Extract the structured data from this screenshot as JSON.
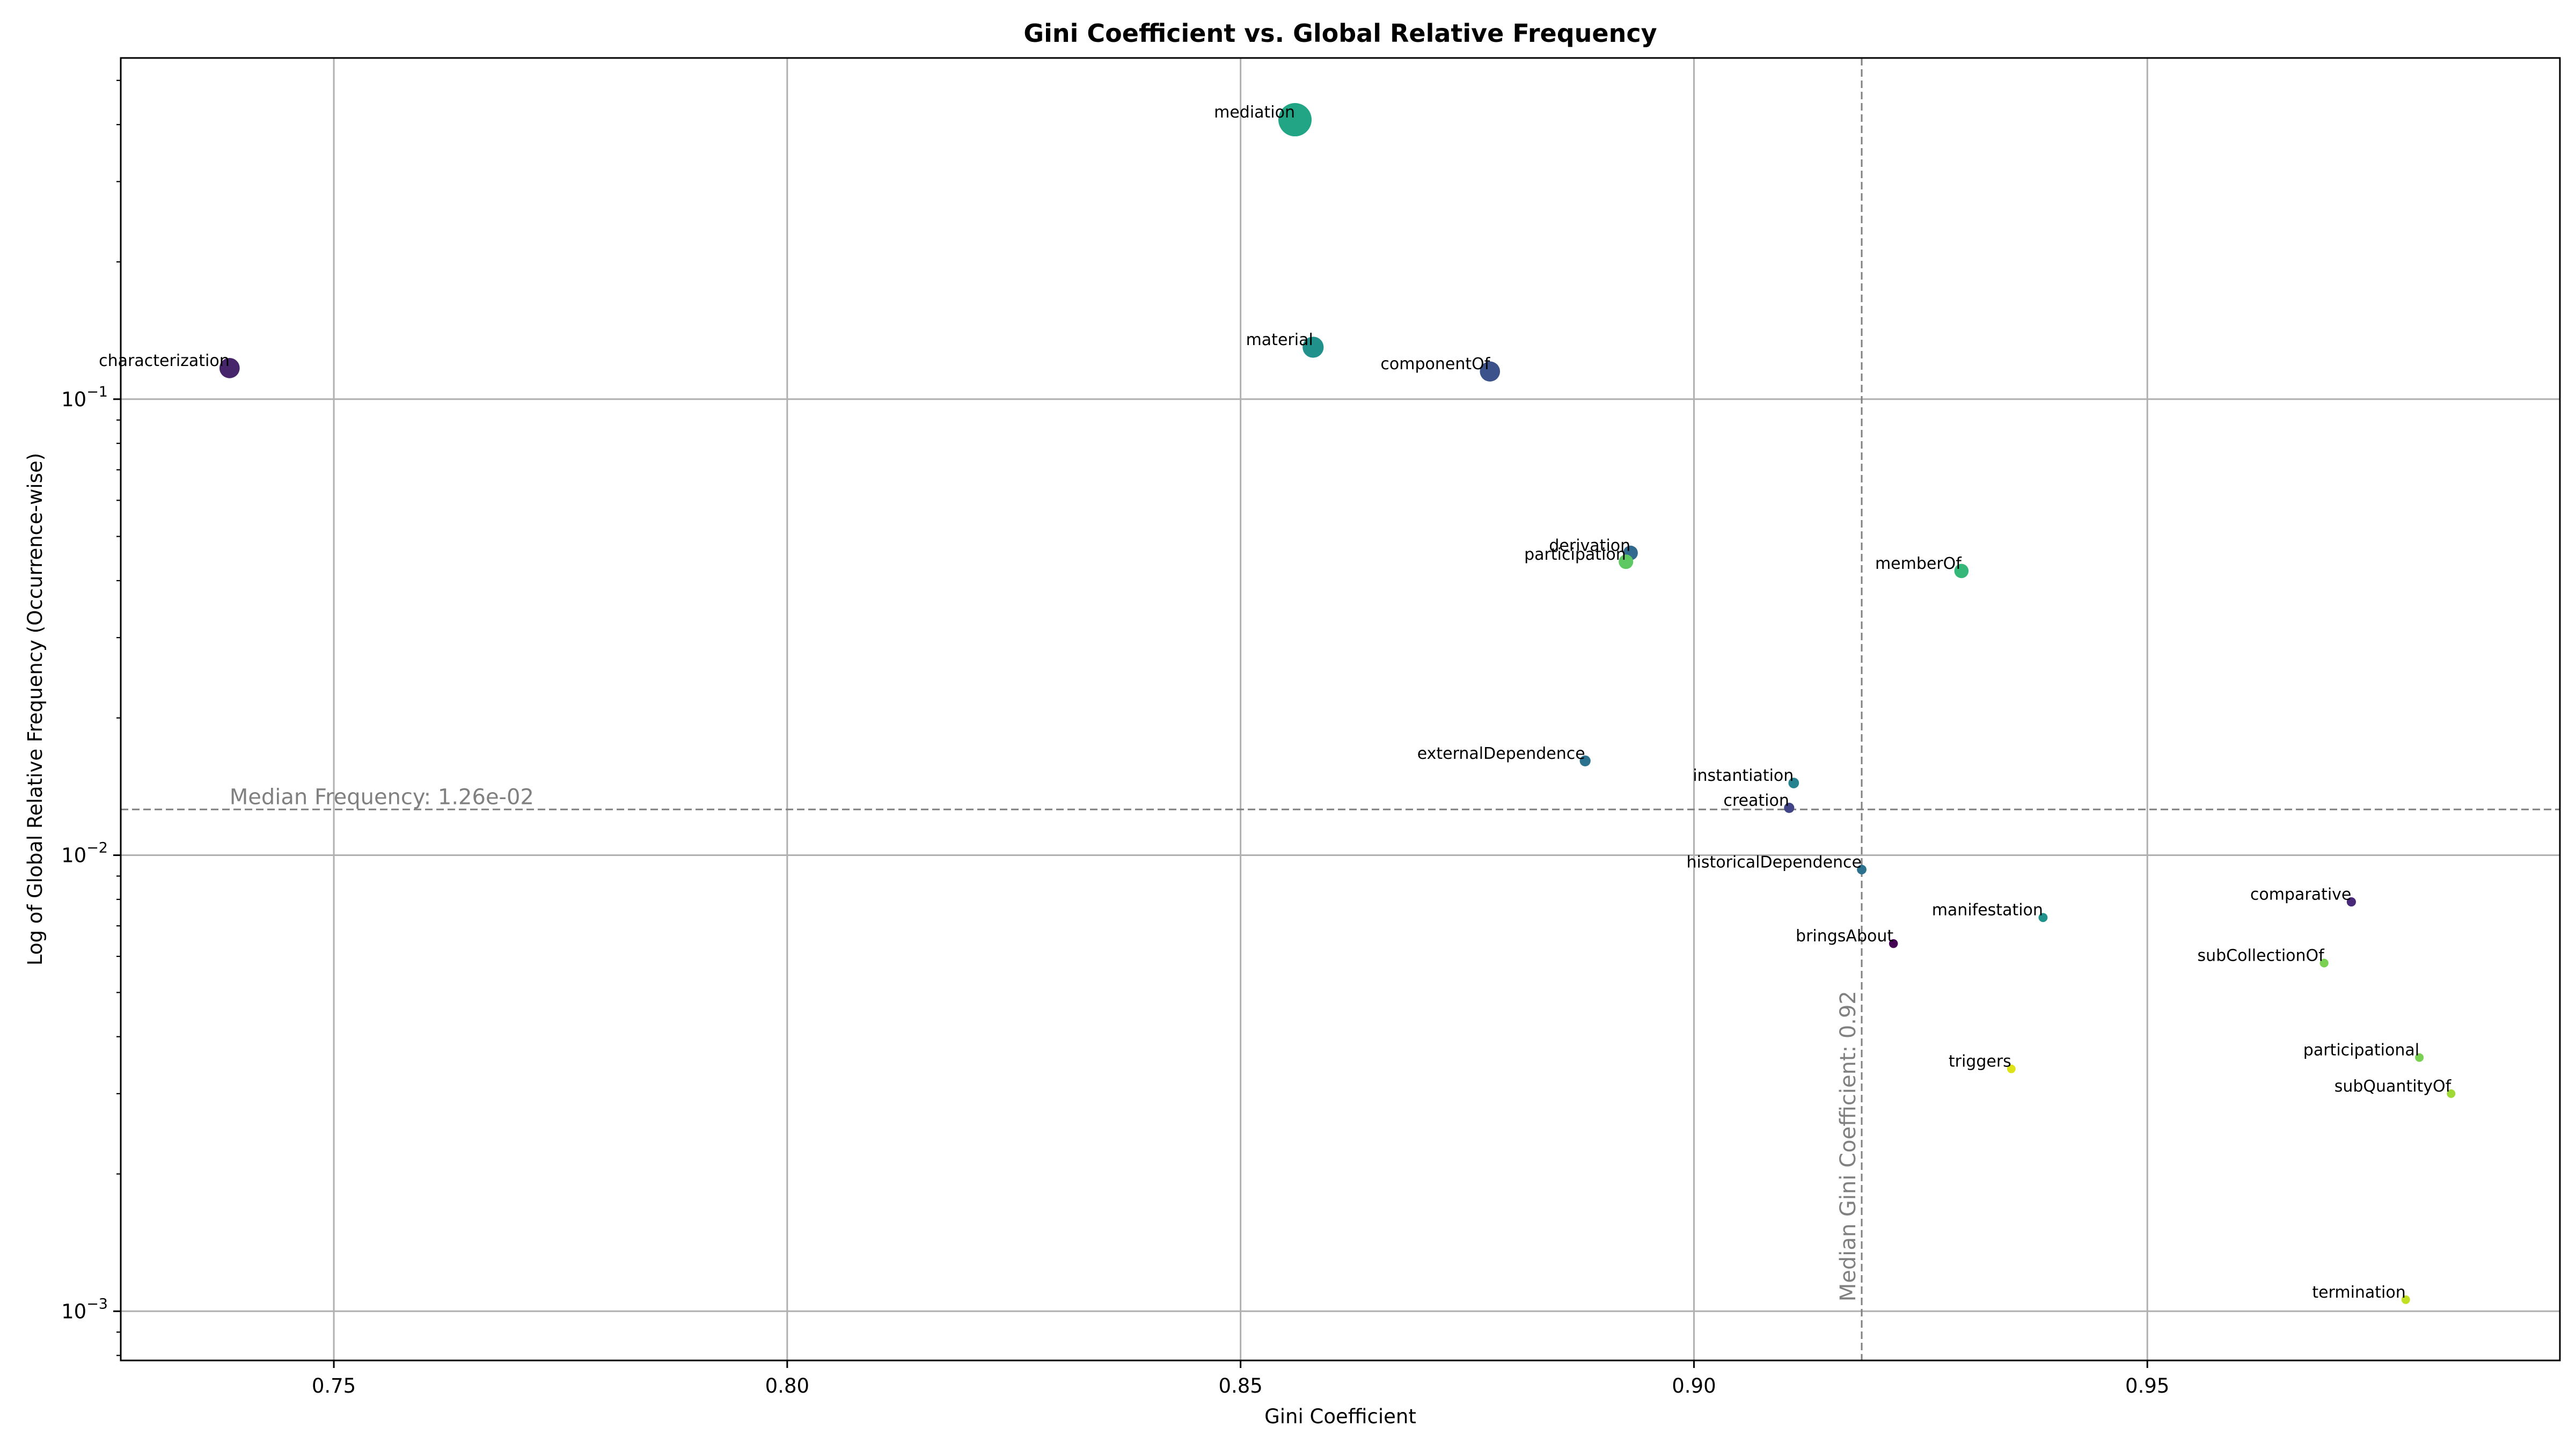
{
  "chart_data": {
    "type": "scatter",
    "title": "Gini Coefficient vs. Global Relative Frequency",
    "xlabel": "Gini Coefficient",
    "ylabel": "Log of Global Relative Frequency (Occurrence-wise)",
    "xlim": [
      0.7265,
      0.9955
    ],
    "ylim": [
      0.00078,
      0.56
    ],
    "yscale": "log",
    "grid": true,
    "x_ticks": [
      0.75,
      0.8,
      0.85,
      0.9,
      0.95
    ],
    "x_tick_labels": [
      "0.75",
      "0.80",
      "0.85",
      "0.90",
      "0.95"
    ],
    "y_ticks": [
      0.001,
      0.01,
      0.1
    ],
    "y_tick_labels": [
      {
        "base": "10",
        "exp": "−3"
      },
      {
        "base": "10",
        "exp": "−2"
      },
      {
        "base": "10",
        "exp": "−1"
      }
    ],
    "reference_lines": {
      "median_frequency": {
        "value": 0.0126,
        "label": "Median Frequency: 1.26e-02"
      },
      "median_gini": {
        "value": 0.9185,
        "label": "Median Gini Coefficient: 0.92"
      }
    },
    "points": [
      {
        "label": "mediation",
        "x": 0.856,
        "y": 0.41,
        "color": "#21a585"
      },
      {
        "label": "characterization",
        "x": 0.7385,
        "y": 0.117,
        "color": "#46256b"
      },
      {
        "label": "material",
        "x": 0.858,
        "y": 0.13,
        "color": "#21918c"
      },
      {
        "label": "componentOf",
        "x": 0.8775,
        "y": 0.115,
        "color": "#3b528b"
      },
      {
        "label": "derivation",
        "x": 0.893,
        "y": 0.046,
        "color": "#31688e"
      },
      {
        "label": "participation",
        "x": 0.8925,
        "y": 0.044,
        "color": "#5ec962"
      },
      {
        "label": "memberOf",
        "x": 0.9295,
        "y": 0.042,
        "color": "#35b779"
      },
      {
        "label": "externalDependence",
        "x": 0.888,
        "y": 0.0161,
        "color": "#2c728e"
      },
      {
        "label": "instantiation",
        "x": 0.911,
        "y": 0.0144,
        "color": "#26828e"
      },
      {
        "label": "creation",
        "x": 0.9105,
        "y": 0.0127,
        "color": "#414487"
      },
      {
        "label": "historicalDependence",
        "x": 0.9185,
        "y": 0.0093,
        "color": "#2c728e"
      },
      {
        "label": "manifestation",
        "x": 0.9385,
        "y": 0.0073,
        "color": "#21918c"
      },
      {
        "label": "bringsAbout",
        "x": 0.922,
        "y": 0.0064,
        "color": "#440154"
      },
      {
        "label": "comparative",
        "x": 0.9725,
        "y": 0.0079,
        "color": "#482878"
      },
      {
        "label": "subCollectionOf",
        "x": 0.9695,
        "y": 0.0058,
        "color": "#7ad151"
      },
      {
        "label": "triggers",
        "x": 0.935,
        "y": 0.0034,
        "color": "#dde318"
      },
      {
        "label": "participational",
        "x": 0.98,
        "y": 0.0036,
        "color": "#7ad151"
      },
      {
        "label": "subQuantityOf",
        "x": 0.9835,
        "y": 0.003,
        "color": "#a0da39"
      },
      {
        "label": "termination",
        "x": 0.9785,
        "y": 0.00106,
        "color": "#c2df23"
      }
    ]
  }
}
